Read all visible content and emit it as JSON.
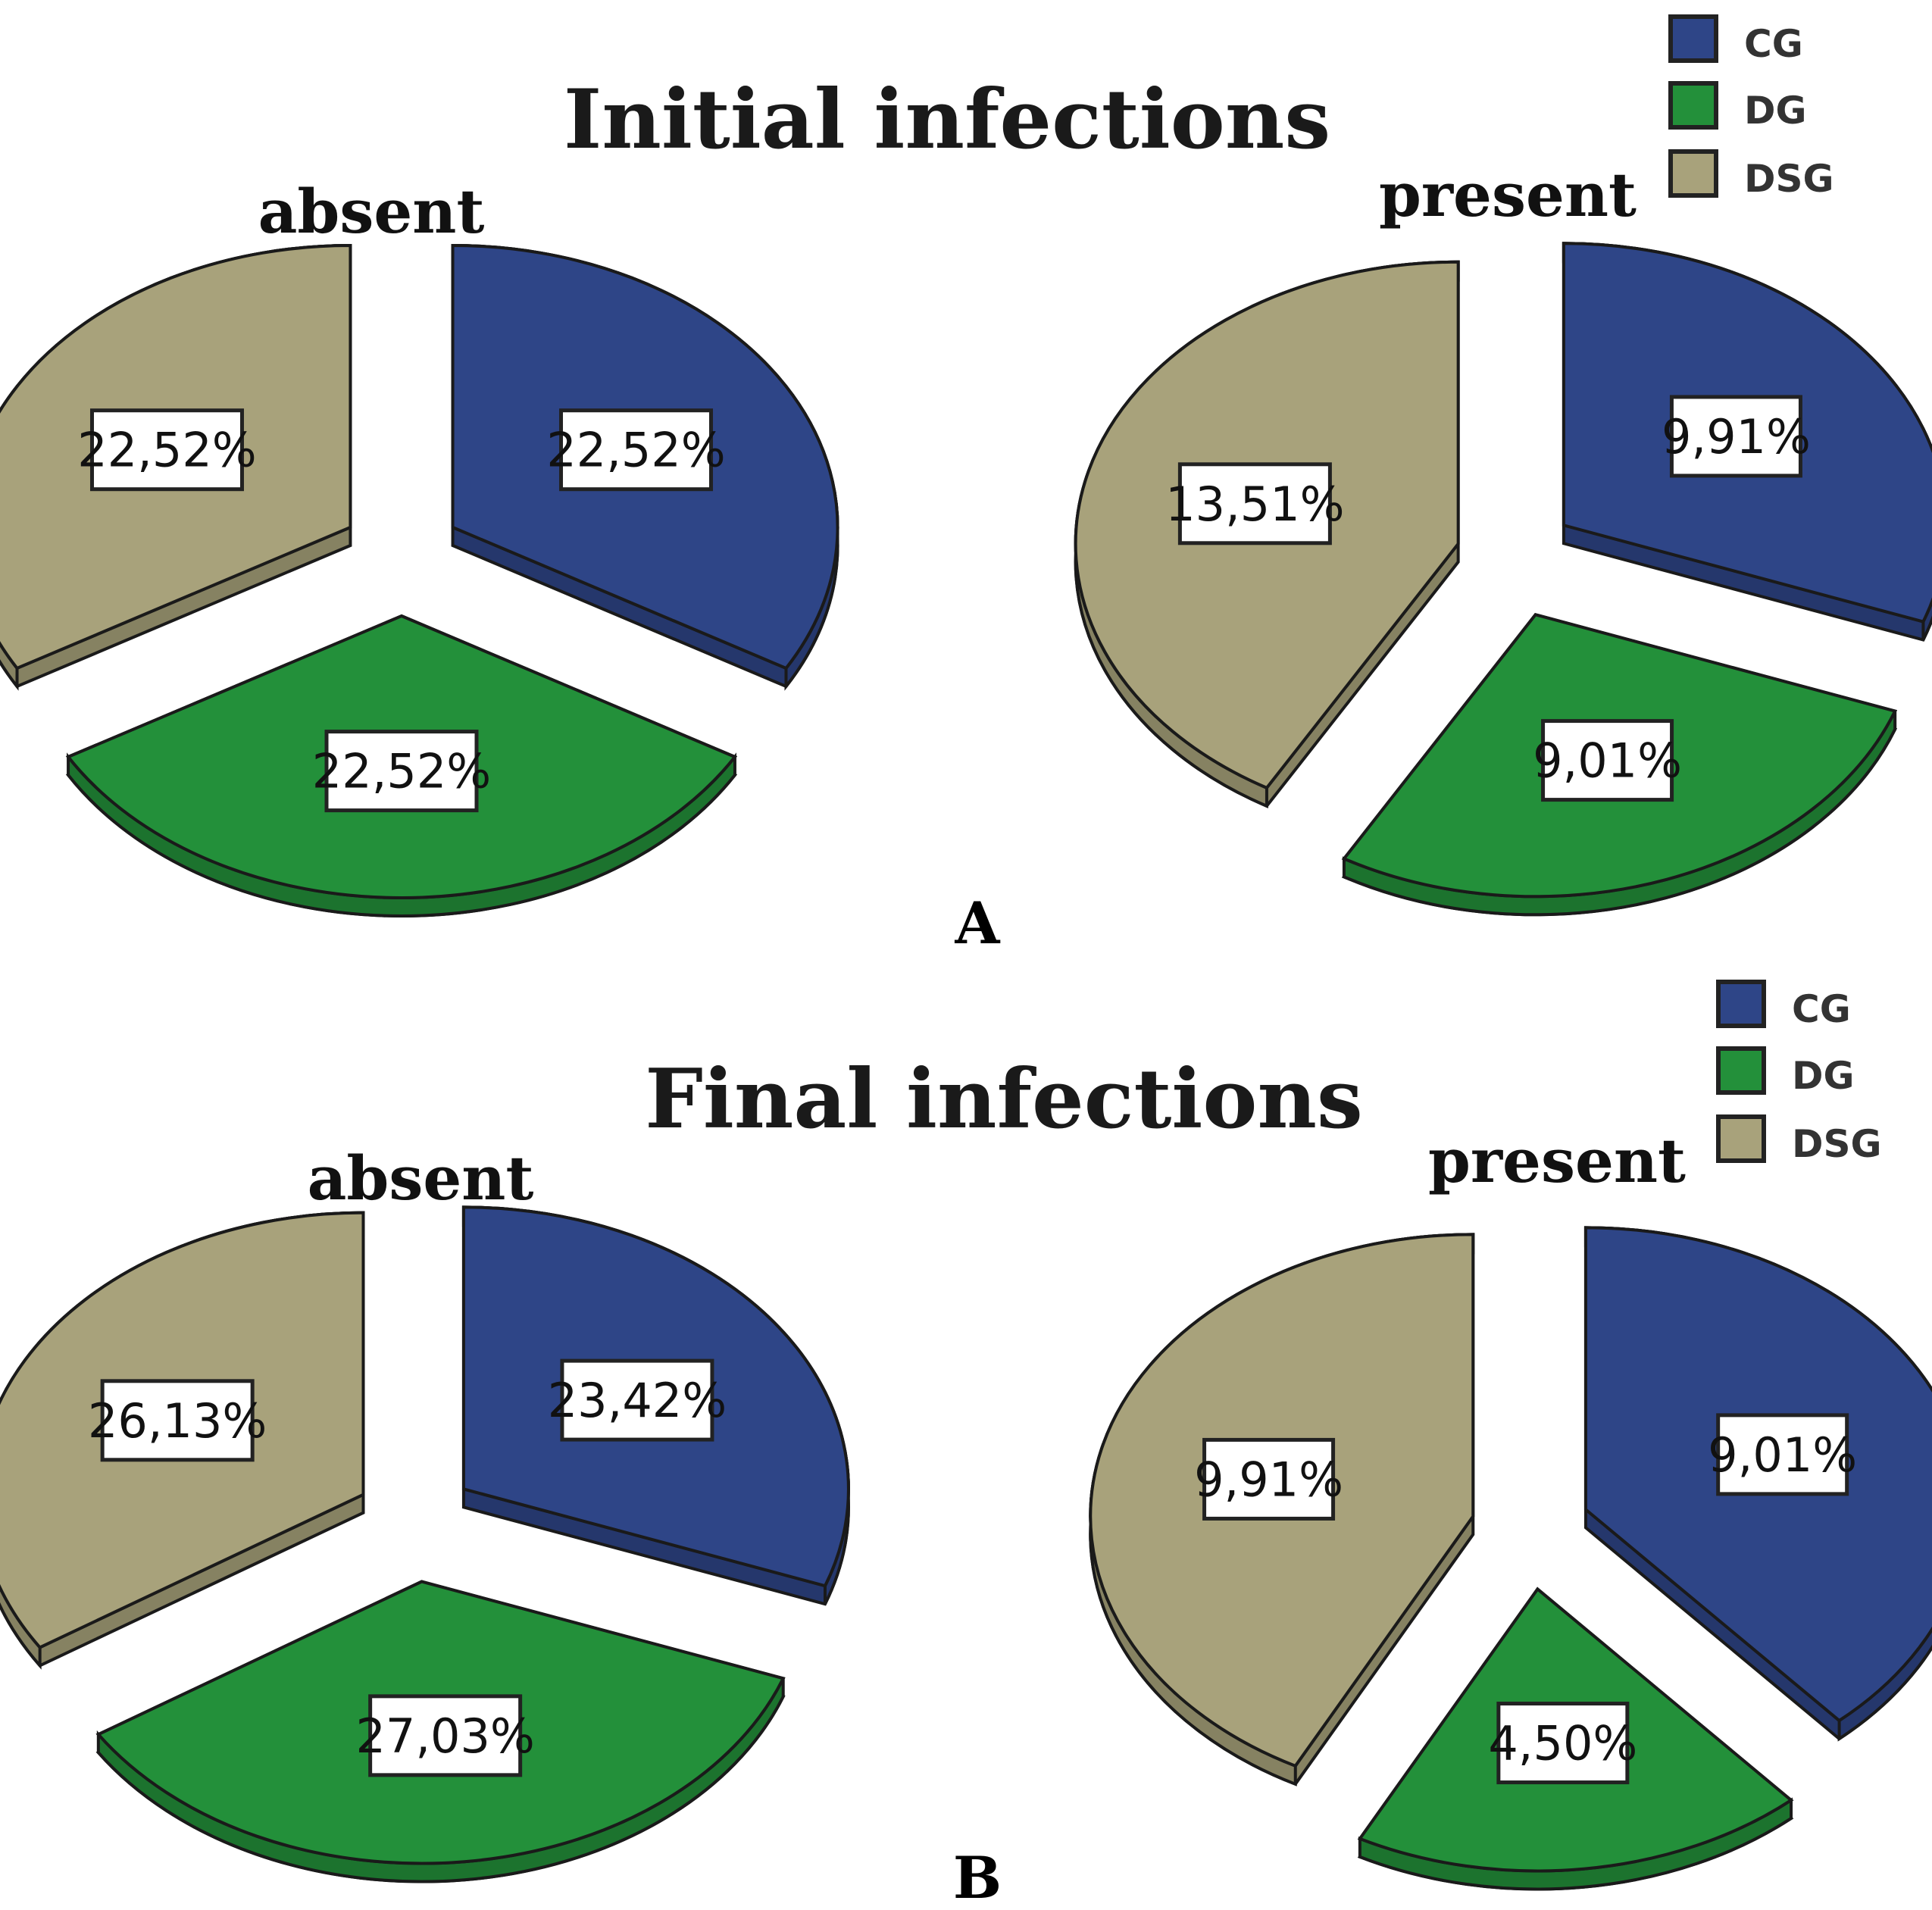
{
  "colors": {
    "CG": "#2e4587",
    "DG": "#23903a",
    "DSG": "#a8a27b"
  },
  "chart_data": [
    {
      "type": "pie",
      "panel": "A",
      "title": "Initial infections",
      "legend": [
        "CG",
        "DG",
        "DSG"
      ],
      "pies": [
        {
          "name": "absent",
          "slices": [
            {
              "name": "CG",
              "value": 22.52,
              "label": "22,52%"
            },
            {
              "name": "DG",
              "value": 22.52,
              "label": "22,52%"
            },
            {
              "name": "DSG",
              "value": 22.52,
              "label": "22,52%"
            }
          ]
        },
        {
          "name": "present",
          "slices": [
            {
              "name": "CG",
              "value": 9.91,
              "label": "9,91%"
            },
            {
              "name": "DG",
              "value": 9.01,
              "label": "9,01%"
            },
            {
              "name": "DSG",
              "value": 13.51,
              "label": "13,51%"
            }
          ]
        }
      ]
    },
    {
      "type": "pie",
      "panel": "B",
      "title": "Final infections",
      "legend": [
        "CG",
        "DG",
        "DSG"
      ],
      "pies": [
        {
          "name": "absent",
          "slices": [
            {
              "name": "CG",
              "value": 23.42,
              "label": "23,42%"
            },
            {
              "name": "DG",
              "value": 27.03,
              "label": "27,03%"
            },
            {
              "name": "DSG",
              "value": 26.13,
              "label": "26,13%"
            }
          ]
        },
        {
          "name": "present",
          "slices": [
            {
              "name": "CG",
              "value": 9.01,
              "label": "9,01%"
            },
            {
              "name": "DG",
              "value": 4.5,
              "label": "4,50%"
            },
            {
              "name": "DSG",
              "value": 9.91,
              "label": "9,91%"
            }
          ]
        }
      ]
    }
  ]
}
